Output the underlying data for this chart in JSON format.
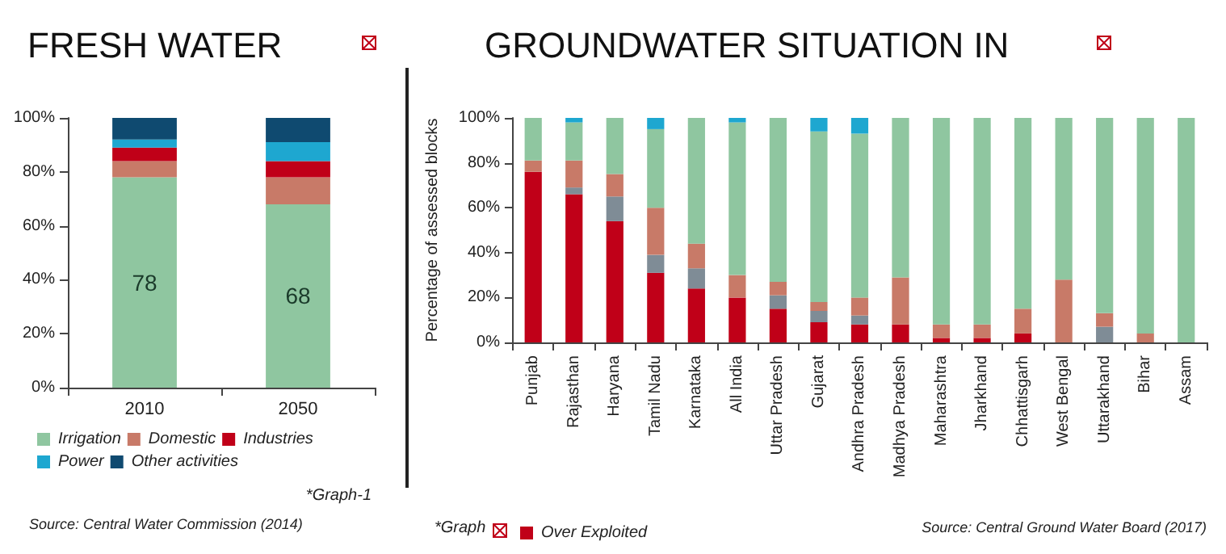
{
  "chart_data": [
    {
      "type": "bar",
      "title": "FRESH WATER",
      "categories": [
        "2010",
        "2050"
      ],
      "stacked": true,
      "series": [
        {
          "name": "Irrigation",
          "color": "#8fc6a0",
          "values": [
            78,
            68
          ],
          "value_labels": [
            "78",
            "68"
          ]
        },
        {
          "name": "Domestic",
          "color": "#c87a68",
          "values": [
            6,
            10
          ]
        },
        {
          "name": "Industries",
          "color": "#c00018",
          "values": [
            5,
            6
          ]
        },
        {
          "name": "Power",
          "color": "#1ea7d0",
          "values": [
            3,
            7
          ]
        },
        {
          "name": "Other activities",
          "color": "#0f4a70",
          "values": [
            8,
            9
          ]
        }
      ],
      "ylim": [
        0,
        100
      ],
      "yticks": [
        {
          "value": 0,
          "label": "0%"
        },
        {
          "value": 20,
          "label": "20%"
        },
        {
          "value": 40,
          "label": "40%"
        },
        {
          "value": 60,
          "label": "60%"
        },
        {
          "value": 80,
          "label": "80%"
        },
        {
          "value": 100,
          "label": "100%"
        }
      ],
      "legend": "bottom",
      "annotations": [
        "*Graph-1",
        "Source: Central Water Commission (2014)"
      ]
    },
    {
      "type": "bar",
      "title": "GROUNDWATER SITUATION IN",
      "ylabel": "Percentage of assessed blocks",
      "categories": [
        "Punjab",
        "Rajasthan",
        "Haryana",
        "Tamil Nadu",
        "Karnataka",
        "All India",
        "Uttar Pradesh",
        "Gujarat",
        "Andhra Pradesh",
        "Madhya Pradesh",
        "Maharashtra",
        "Jharkhand",
        "Chhattisgarh",
        "West Bengal",
        "Uttarakhand",
        "Bihar",
        "Assam"
      ],
      "stacked": true,
      "series": [
        {
          "name": "Over Exploited",
          "color": "#c00018",
          "values": [
            76,
            66,
            54,
            31,
            24,
            20,
            15,
            9,
            8,
            8,
            2,
            2,
            4,
            0,
            0,
            0,
            0
          ]
        },
        {
          "color": "#7f8c96",
          "values": [
            0,
            3,
            11,
            8,
            9,
            0,
            6,
            5,
            4,
            0,
            0,
            0,
            0,
            0,
            7,
            0,
            0
          ]
        },
        {
          "color": "#c87a68",
          "values": [
            5,
            12,
            10,
            21,
            11,
            10,
            6,
            4,
            8,
            21,
            6,
            6,
            11,
            28,
            6,
            4,
            0
          ]
        },
        {
          "color": "#8fc6a0",
          "values": [
            19,
            17,
            25,
            35,
            56,
            68,
            73,
            76,
            73,
            71,
            92,
            92,
            85,
            72,
            87,
            96,
            100
          ]
        },
        {
          "color": "#1ea7d0",
          "values": [
            0,
            2,
            0,
            5,
            0,
            2,
            0,
            6,
            7,
            0,
            0,
            0,
            0,
            0,
            0,
            0,
            0
          ]
        }
      ],
      "ylim": [
        0,
        100
      ],
      "yticks": [
        {
          "value": 0,
          "label": "0%"
        },
        {
          "value": 20,
          "label": "20%"
        },
        {
          "value": 40,
          "label": "40%"
        },
        {
          "value": 60,
          "label": "60%"
        },
        {
          "value": 80,
          "label": "80%"
        },
        {
          "value": 100,
          "label": "100%"
        }
      ],
      "legend": "bottom",
      "annotations": [
        "*Graph",
        "Source: Central Ground Water Board (2017)"
      ]
    }
  ]
}
